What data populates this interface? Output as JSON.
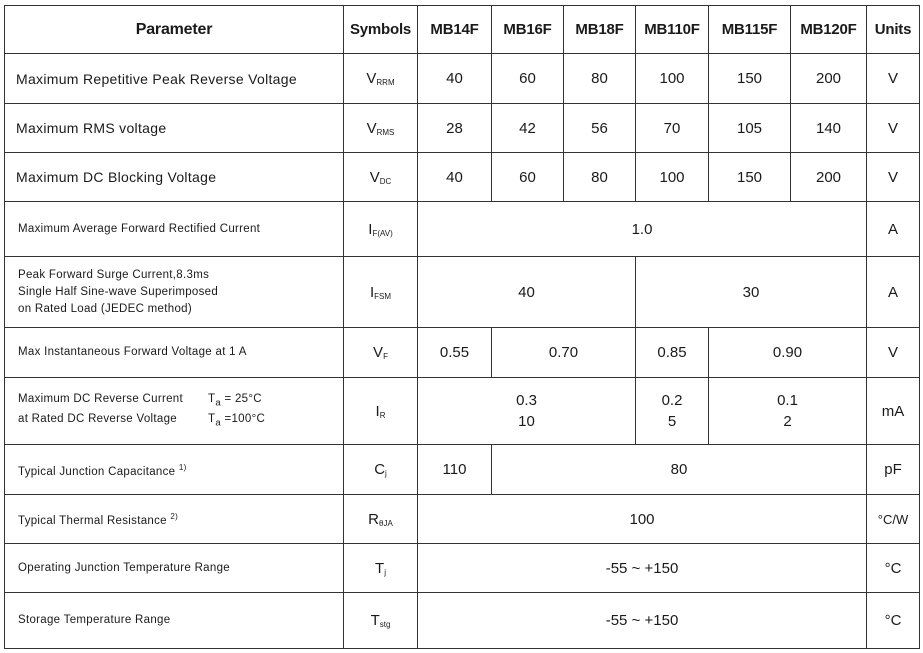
{
  "header": {
    "parameter": "Parameter",
    "symbols": "Symbols",
    "models": [
      "MB14F",
      "MB16F",
      "MB18F",
      "MB110F",
      "MB115F",
      "MB120F"
    ],
    "units": "Units"
  },
  "rows": [
    {
      "param": "Maximum Repetitive Peak Reverse Voltage",
      "sym": "V",
      "sub": "RRM",
      "values": [
        "40",
        "60",
        "80",
        "100",
        "150",
        "200"
      ],
      "unit": "V"
    },
    {
      "param": "Maximum RMS voltage",
      "sym": "V",
      "sub": "RMS",
      "values": [
        "28",
        "42",
        "56",
        "70",
        "105",
        "140"
      ],
      "unit": "V"
    },
    {
      "param": "Maximum DC Blocking Voltage",
      "sym": "V",
      "sub": "DC",
      "values": [
        "40",
        "60",
        "80",
        "100",
        "150",
        "200"
      ],
      "unit": "V"
    },
    {
      "param": "Maximum Average Forward Rectified Current",
      "sym": "I",
      "sub": "F(AV)",
      "values": [
        "1.0"
      ],
      "unit": "A"
    },
    {
      "param_lines": [
        "Peak Forward Surge Current,8.3ms",
        "Single Half Sine-wave Superimposed",
        "on Rated Load (JEDEC method)"
      ],
      "sym": "I",
      "sub": "FSM",
      "values": [
        "40",
        "30"
      ],
      "unit": "A"
    },
    {
      "param": "Max Instantaneous Forward Voltage at 1 A",
      "sym": "V",
      "sub": "F",
      "values": [
        "0.55",
        "0.70",
        "0.85",
        "0.90"
      ],
      "unit": "V"
    },
    {
      "param_lines": [
        "Maximum DC Reverse Current",
        "at Rated DC Reverse Voltage"
      ],
      "conditions": [
        {
          "t": "T",
          "sub": "a",
          "val": " = 25°C"
        },
        {
          "t": "T",
          "sub": "a",
          "val": " =100°C"
        }
      ],
      "sym": "I",
      "sub": "R",
      "values": [
        [
          "0.3",
          "10"
        ],
        [
          "0.2",
          "5"
        ],
        [
          "0.1",
          "2"
        ]
      ],
      "unit": "mA"
    },
    {
      "param": "Typical Junction Capacitance",
      "note": "1)",
      "sym": "C",
      "sub": "j",
      "values": [
        "110",
        "80"
      ],
      "unit": "pF"
    },
    {
      "param": "Typical Thermal Resistance",
      "note": "2)",
      "sym": "R",
      "sub": "θJA",
      "values": [
        "100"
      ],
      "unit": "°C/W"
    },
    {
      "param": "Operating Junction Temperature Range",
      "sym": "T",
      "sub": "j",
      "values": [
        "-55 ~ +150"
      ],
      "unit": "°C"
    },
    {
      "param": "Storage Temperature Range",
      "sym": "T",
      "sub": "stg",
      "values": [
        "-55 ~ +150"
      ],
      "unit": "°C"
    }
  ]
}
